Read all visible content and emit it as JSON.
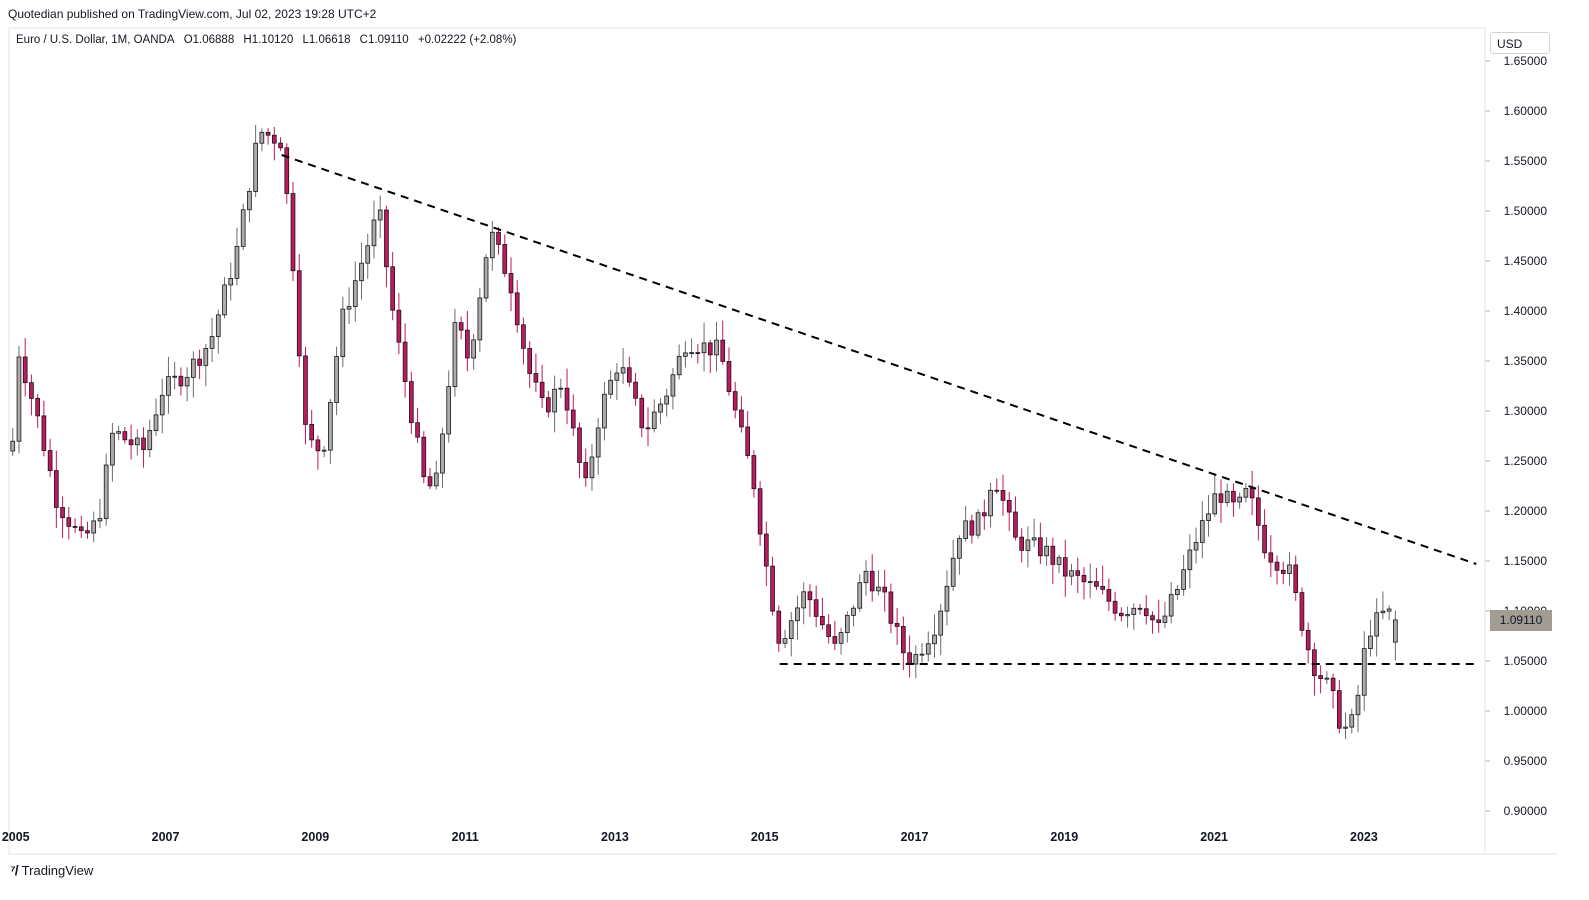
{
  "header": {
    "publisher": "Quotedian published on TradingView.com, Jul 02, 2023 19:28 UTC+2"
  },
  "symbol": {
    "name": "Euro / U.S. Dollar, 1M, OANDA",
    "open": "O1.06888",
    "high": "H1.10120",
    "low": "L1.06618",
    "close": "C1.09110",
    "change": "+0.02222 (+2.08%)"
  },
  "currency": "USD",
  "last_price_label": "1.09110",
  "footer": {
    "logo_text": "TradingView"
  },
  "colors": {
    "up": "#b2aba4",
    "down": "#c2185b",
    "wick": "#6b6b6b",
    "trend": "#000000",
    "grid": "#f0f3fa"
  },
  "chart_data": {
    "type": "candlestick",
    "title": "",
    "xlabel": "",
    "ylabel": "",
    "y_ticks": [
      "1.65000",
      "1.60000",
      "1.55000",
      "1.50000",
      "1.45000",
      "1.40000",
      "1.35000",
      "1.30000",
      "1.25000",
      "1.20000",
      "1.15000",
      "1.10000",
      "1.05000",
      "1.00000",
      "0.95000",
      "0.90000"
    ],
    "x_ticks": [
      {
        "label": "2005",
        "t": 2005.0
      },
      {
        "label": "2007",
        "t": 2007.0
      },
      {
        "label": "2009",
        "t": 2009.0
      },
      {
        "label": "2011",
        "t": 2011.0
      },
      {
        "label": "2013",
        "t": 2013.0
      },
      {
        "label": "2015",
        "t": 2015.0
      },
      {
        "label": "2017",
        "t": 2017.0
      },
      {
        "label": "2019",
        "t": 2019.0
      },
      {
        "label": "2021",
        "t": 2021.0
      },
      {
        "label": "2023",
        "t": 2023.0
      }
    ],
    "ylim": [
      0.88,
      1.66
    ],
    "xlim": [
      2004.95,
      2024.55
    ],
    "anchors": [
      [
        2004.96,
        1.27
      ],
      [
        2005.04,
        1.36
      ],
      [
        2005.3,
        1.29
      ],
      [
        2005.55,
        1.21
      ],
      [
        2005.88,
        1.17
      ],
      [
        2006.1,
        1.19
      ],
      [
        2006.3,
        1.28
      ],
      [
        2006.7,
        1.26
      ],
      [
        2006.95,
        1.32
      ],
      [
        2007.3,
        1.34
      ],
      [
        2007.6,
        1.37
      ],
      [
        2007.95,
        1.46
      ],
      [
        2008.25,
        1.58
      ],
      [
        2008.55,
        1.57
      ],
      [
        2008.7,
        1.45
      ],
      [
        2008.88,
        1.27
      ],
      [
        2009.1,
        1.26
      ],
      [
        2009.35,
        1.39
      ],
      [
        2009.85,
        1.5
      ],
      [
        2010.05,
        1.39
      ],
      [
        2010.45,
        1.23
      ],
      [
        2010.6,
        1.22
      ],
      [
        2010.88,
        1.39
      ],
      [
        2011.05,
        1.35
      ],
      [
        2011.33,
        1.48
      ],
      [
        2011.6,
        1.43
      ],
      [
        2011.85,
        1.34
      ],
      [
        2012.05,
        1.3
      ],
      [
        2012.3,
        1.33
      ],
      [
        2012.6,
        1.22
      ],
      [
        2012.8,
        1.3
      ],
      [
        2013.05,
        1.35
      ],
      [
        2013.4,
        1.28
      ],
      [
        2013.7,
        1.32
      ],
      [
        2013.95,
        1.37
      ],
      [
        2014.4,
        1.36
      ],
      [
        2014.6,
        1.3
      ],
      [
        2014.85,
        1.23
      ],
      [
        2015.05,
        1.13
      ],
      [
        2015.2,
        1.07
      ],
      [
        2015.55,
        1.12
      ],
      [
        2015.95,
        1.06
      ],
      [
        2016.35,
        1.14
      ],
      [
        2016.6,
        1.11
      ],
      [
        2016.85,
        1.06
      ],
      [
        2016.98,
        1.05
      ],
      [
        2017.3,
        1.09
      ],
      [
        2017.6,
        1.18
      ],
      [
        2017.9,
        1.19
      ],
      [
        2018.05,
        1.24
      ],
      [
        2018.35,
        1.17
      ],
      [
        2018.75,
        1.16
      ],
      [
        2018.98,
        1.14
      ],
      [
        2019.45,
        1.12
      ],
      [
        2019.75,
        1.1
      ],
      [
        2020.05,
        1.11
      ],
      [
        2020.25,
        1.08
      ],
      [
        2020.5,
        1.12
      ],
      [
        2020.75,
        1.17
      ],
      [
        2021.05,
        1.22
      ],
      [
        2021.3,
        1.2
      ],
      [
        2021.45,
        1.22
      ],
      [
        2021.7,
        1.16
      ],
      [
        2022.0,
        1.14
      ],
      [
        2022.3,
        1.05
      ],
      [
        2022.55,
        1.02
      ],
      [
        2022.72,
        0.98
      ],
      [
        2022.87,
        0.99
      ],
      [
        2023.05,
        1.08
      ],
      [
        2023.3,
        1.1
      ],
      [
        2023.42,
        1.09
      ]
    ],
    "trendlines": [
      {
        "name": "",
        "from": [
          2008.55,
          1.556
        ],
        "to": [
          2024.5,
          1.147
        ],
        "style": "dashed"
      },
      {
        "name": "",
        "from": [
          2015.2,
          1.047
        ],
        "to": [
          2024.5,
          1.047
        ],
        "style": "dashed"
      }
    ],
    "last_price": 1.0911,
    "grid": false,
    "up_color": "#b2aba4",
    "down_color": "#c2185b"
  }
}
